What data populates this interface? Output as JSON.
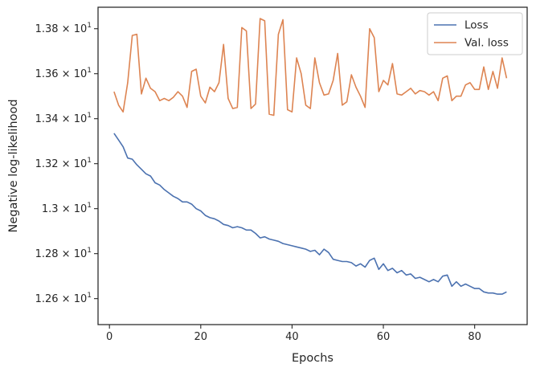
{
  "chart_data": {
    "type": "line",
    "xlabel": "Epochs",
    "ylabel": "Negative log-likelihood",
    "xlim": [
      -2.5,
      91.5
    ],
    "ylim": [
      12.4845,
      13.8955
    ],
    "x_ticks": [
      0,
      20,
      40,
      60,
      80
    ],
    "x_tick_labels": [
      "0",
      "20",
      "40",
      "60",
      "80"
    ],
    "y_ticks": [
      12.6,
      12.8,
      13.0,
      13.2,
      13.4,
      13.6,
      13.8
    ],
    "y_tick_labels": [
      {
        "mant": "1.26",
        "exp": "1"
      },
      {
        "mant": "1.28",
        "exp": "1"
      },
      {
        "mant": "1.3",
        "exp": "1"
      },
      {
        "mant": "1.32",
        "exp": "1"
      },
      {
        "mant": "1.34",
        "exp": "1"
      },
      {
        "mant": "1.36",
        "exp": "1"
      },
      {
        "mant": "1.38",
        "exp": "1"
      }
    ],
    "y_tick_base": "× 10",
    "grid": false,
    "legend_position": "top-right",
    "series": [
      {
        "name": "Loss",
        "color": "#4c72b0",
        "x": [
          1,
          2,
          3,
          4,
          5,
          6,
          7,
          8,
          9,
          10,
          11,
          12,
          13,
          14,
          15,
          16,
          17,
          18,
          19,
          20,
          21,
          22,
          23,
          24,
          25,
          26,
          27,
          28,
          29,
          30,
          31,
          32,
          33,
          34,
          35,
          36,
          37,
          38,
          39,
          40,
          41,
          42,
          43,
          44,
          45,
          46,
          47,
          48,
          49,
          50,
          51,
          52,
          53,
          54,
          55,
          56,
          57,
          58,
          59,
          60,
          61,
          62,
          63,
          64,
          65,
          66,
          67,
          68,
          69,
          70,
          71,
          72,
          73,
          74,
          75,
          76,
          77,
          78,
          79,
          80,
          81,
          82,
          83,
          84,
          85,
          86,
          87
        ],
        "values": [
          13.335,
          13.305,
          13.275,
          13.225,
          13.22,
          13.195,
          13.175,
          13.155,
          13.145,
          13.115,
          13.105,
          13.085,
          13.07,
          13.055,
          13.045,
          13.03,
          13.03,
          13.02,
          13.0,
          12.99,
          12.97,
          12.96,
          12.955,
          12.945,
          12.93,
          12.925,
          12.915,
          12.92,
          12.915,
          12.905,
          12.905,
          12.89,
          12.87,
          12.875,
          12.865,
          12.86,
          12.855,
          12.845,
          12.84,
          12.835,
          12.83,
          12.825,
          12.82,
          12.81,
          12.815,
          12.795,
          12.82,
          12.805,
          12.775,
          12.77,
          12.765,
          12.765,
          12.76,
          12.745,
          12.755,
          12.74,
          12.77,
          12.78,
          12.73,
          12.755,
          12.725,
          12.735,
          12.715,
          12.725,
          12.705,
          12.71,
          12.69,
          12.695,
          12.685,
          12.675,
          12.685,
          12.675,
          12.7,
          12.705,
          12.655,
          12.675,
          12.655,
          12.665,
          12.655,
          12.645,
          12.645,
          12.63,
          12.625,
          12.625,
          12.62,
          12.62,
          12.63
        ]
      },
      {
        "name": "Val. loss",
        "color": "#dd8452",
        "x": [
          1,
          2,
          3,
          4,
          5,
          6,
          7,
          8,
          9,
          10,
          11,
          12,
          13,
          14,
          15,
          16,
          17,
          18,
          19,
          20,
          21,
          22,
          23,
          24,
          25,
          26,
          27,
          28,
          29,
          30,
          31,
          32,
          33,
          34,
          35,
          36,
          37,
          38,
          39,
          40,
          41,
          42,
          43,
          44,
          45,
          46,
          47,
          48,
          49,
          50,
          51,
          52,
          53,
          54,
          55,
          56,
          57,
          58,
          59,
          60,
          61,
          62,
          63,
          64,
          65,
          66,
          67,
          68,
          69,
          70,
          71,
          72,
          73,
          74,
          75,
          76,
          77,
          78,
          79,
          80,
          81,
          82,
          83,
          84,
          85,
          86,
          87
        ],
        "values": [
          13.52,
          13.46,
          13.43,
          13.56,
          13.77,
          13.775,
          13.51,
          13.58,
          13.535,
          13.52,
          13.48,
          13.49,
          13.48,
          13.495,
          13.52,
          13.5,
          13.45,
          13.61,
          13.62,
          13.5,
          13.47,
          13.54,
          13.52,
          13.56,
          13.73,
          13.49,
          13.445,
          13.45,
          13.805,
          13.79,
          13.445,
          13.465,
          13.845,
          13.835,
          13.42,
          13.415,
          13.775,
          13.84,
          13.44,
          13.43,
          13.67,
          13.6,
          13.46,
          13.445,
          13.67,
          13.56,
          13.505,
          13.51,
          13.57,
          13.69,
          13.46,
          13.475,
          13.595,
          13.54,
          13.5,
          13.45,
          13.8,
          13.76,
          13.52,
          13.57,
          13.55,
          13.645,
          13.51,
          13.505,
          13.52,
          13.535,
          13.51,
          13.525,
          13.52,
          13.505,
          13.52,
          13.48,
          13.58,
          13.59,
          13.48,
          13.5,
          13.5,
          13.55,
          13.56,
          13.53,
          13.53,
          13.63,
          13.53,
          13.61,
          13.535,
          13.67,
          13.58
        ]
      }
    ]
  }
}
